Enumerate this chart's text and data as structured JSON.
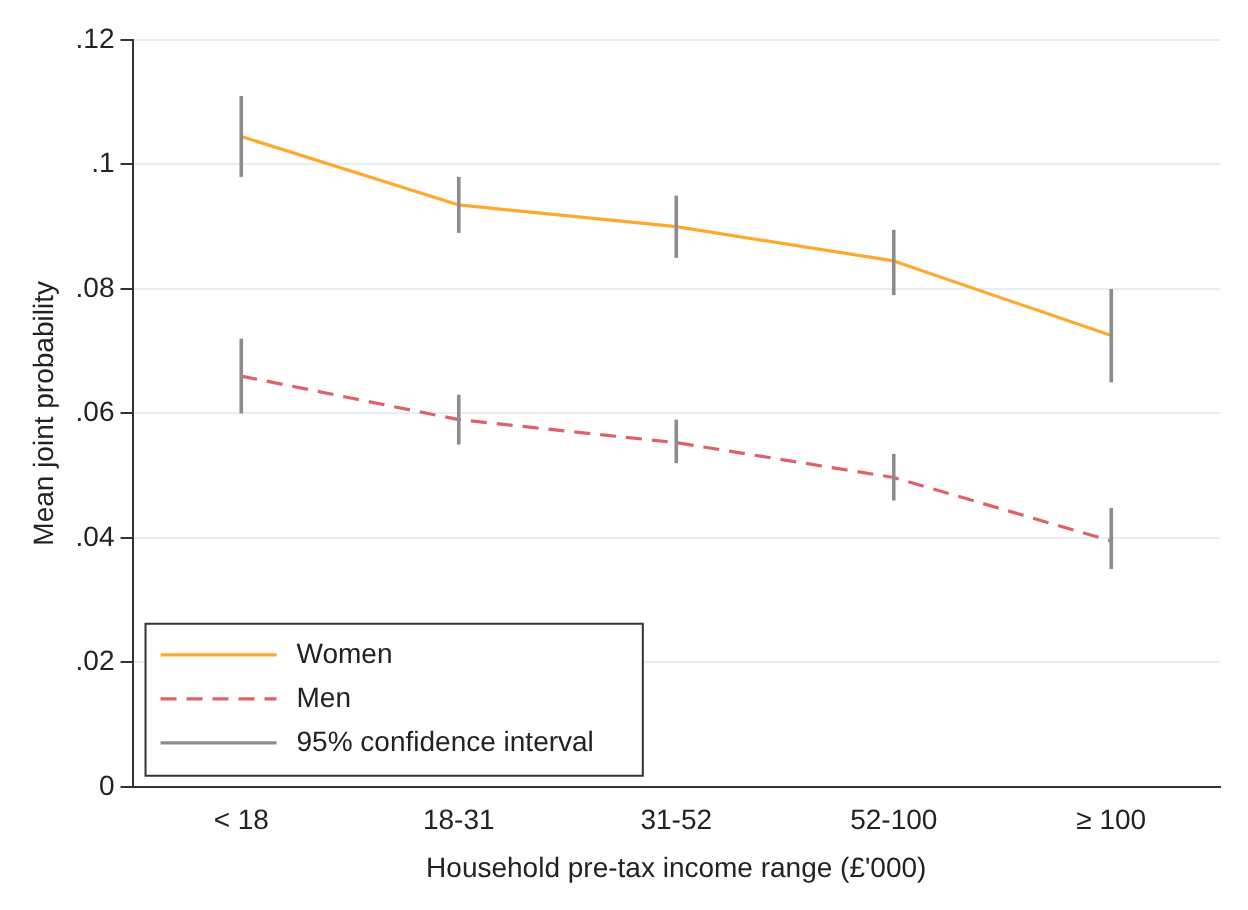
{
  "chart_data": {
    "type": "line",
    "xlabel": "Household pre-tax income range (£'000)",
    "ylabel": "Mean joint probability",
    "categories": [
      "< 18",
      "18-31",
      "31-52",
      "52-100",
      "≥ 100"
    ],
    "series": [
      {
        "name": "Women",
        "color": "#ffa82e",
        "line_style": "solid",
        "values": [
          0.1045,
          0.0935,
          0.09,
          0.0845,
          0.0725
        ],
        "errors": [
          [
            0.098,
            0.111
          ],
          [
            0.089,
            0.098
          ],
          [
            0.085,
            0.095
          ],
          [
            0.079,
            0.0895
          ],
          [
            0.065,
            0.08
          ]
        ]
      },
      {
        "name": "Men",
        "color": "#e0606a",
        "line_style": "dashed",
        "values": [
          0.066,
          0.059,
          0.0553,
          0.0497,
          0.0395
        ],
        "errors": [
          [
            0.06,
            0.072
          ],
          [
            0.055,
            0.063
          ],
          [
            0.052,
            0.059
          ],
          [
            0.046,
            0.0535
          ],
          [
            0.035,
            0.0448
          ]
        ]
      },
      {
        "name": "95% confidence interval",
        "color": "#8c8c8c",
        "values": [
          null,
          null,
          null,
          null,
          null
        ]
      }
    ],
    "ylim": [
      0,
      0.12
    ],
    "yticks": [
      {
        "value": 0,
        "label": "0"
      },
      {
        "value": 0.02,
        "label": ".02"
      },
      {
        "value": 0.04,
        "label": ".04"
      },
      {
        "value": 0.06,
        "label": ".06"
      },
      {
        "value": 0.08,
        "label": ".08"
      },
      {
        "value": 0.1,
        "label": ".1"
      },
      {
        "value": 0.12,
        "label": ".12"
      }
    ],
    "grid": "y",
    "legend": "bottom left",
    "marker": "none"
  }
}
